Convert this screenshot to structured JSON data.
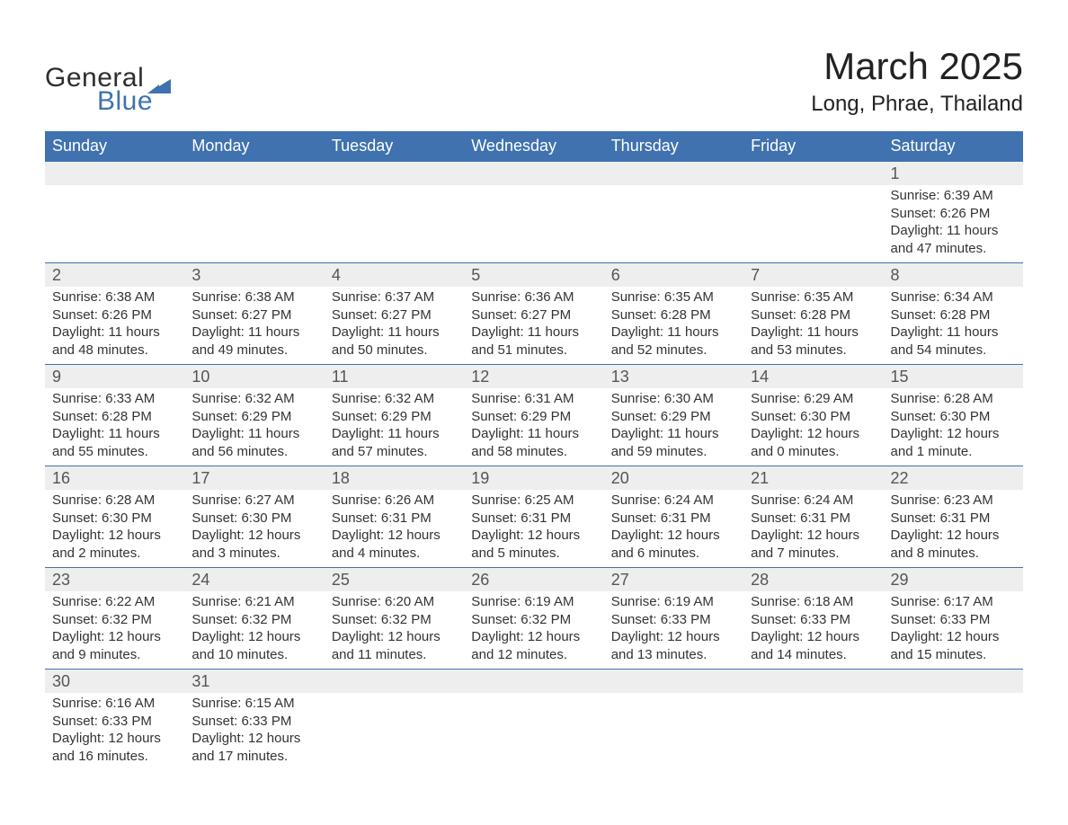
{
  "brand": {
    "word1": "General",
    "word2": "Blue",
    "word1_color": "#2e2e2e",
    "word2_color": "#3f72af",
    "logo_shape_color": "#3f72af"
  },
  "title": {
    "month": "March 2025",
    "location": "Long, Phrae, Thailand"
  },
  "styling": {
    "header_bg": "#3f72af",
    "header_text": "#ffffff",
    "daynum_bg": "#eeeeee",
    "row_border": "#3f72af",
    "body_text": "#333333",
    "daynum_text": "#555555",
    "page_bg": "#ffffff",
    "font_family": "Arial"
  },
  "day_headers": [
    "Sunday",
    "Monday",
    "Tuesday",
    "Wednesday",
    "Thursday",
    "Friday",
    "Saturday"
  ],
  "weeks": [
    {
      "nums": [
        "",
        "",
        "",
        "",
        "",
        "",
        "1"
      ],
      "details": [
        null,
        null,
        null,
        null,
        null,
        null,
        {
          "sunrise": "Sunrise: 6:39 AM",
          "sunset": "Sunset: 6:26 PM",
          "day1": "Daylight: 11 hours",
          "day2": "and 47 minutes."
        }
      ]
    },
    {
      "nums": [
        "2",
        "3",
        "4",
        "5",
        "6",
        "7",
        "8"
      ],
      "details": [
        {
          "sunrise": "Sunrise: 6:38 AM",
          "sunset": "Sunset: 6:26 PM",
          "day1": "Daylight: 11 hours",
          "day2": "and 48 minutes."
        },
        {
          "sunrise": "Sunrise: 6:38 AM",
          "sunset": "Sunset: 6:27 PM",
          "day1": "Daylight: 11 hours",
          "day2": "and 49 minutes."
        },
        {
          "sunrise": "Sunrise: 6:37 AM",
          "sunset": "Sunset: 6:27 PM",
          "day1": "Daylight: 11 hours",
          "day2": "and 50 minutes."
        },
        {
          "sunrise": "Sunrise: 6:36 AM",
          "sunset": "Sunset: 6:27 PM",
          "day1": "Daylight: 11 hours",
          "day2": "and 51 minutes."
        },
        {
          "sunrise": "Sunrise: 6:35 AM",
          "sunset": "Sunset: 6:28 PM",
          "day1": "Daylight: 11 hours",
          "day2": "and 52 minutes."
        },
        {
          "sunrise": "Sunrise: 6:35 AM",
          "sunset": "Sunset: 6:28 PM",
          "day1": "Daylight: 11 hours",
          "day2": "and 53 minutes."
        },
        {
          "sunrise": "Sunrise: 6:34 AM",
          "sunset": "Sunset: 6:28 PM",
          "day1": "Daylight: 11 hours",
          "day2": "and 54 minutes."
        }
      ]
    },
    {
      "nums": [
        "9",
        "10",
        "11",
        "12",
        "13",
        "14",
        "15"
      ],
      "details": [
        {
          "sunrise": "Sunrise: 6:33 AM",
          "sunset": "Sunset: 6:28 PM",
          "day1": "Daylight: 11 hours",
          "day2": "and 55 minutes."
        },
        {
          "sunrise": "Sunrise: 6:32 AM",
          "sunset": "Sunset: 6:29 PM",
          "day1": "Daylight: 11 hours",
          "day2": "and 56 minutes."
        },
        {
          "sunrise": "Sunrise: 6:32 AM",
          "sunset": "Sunset: 6:29 PM",
          "day1": "Daylight: 11 hours",
          "day2": "and 57 minutes."
        },
        {
          "sunrise": "Sunrise: 6:31 AM",
          "sunset": "Sunset: 6:29 PM",
          "day1": "Daylight: 11 hours",
          "day2": "and 58 minutes."
        },
        {
          "sunrise": "Sunrise: 6:30 AM",
          "sunset": "Sunset: 6:29 PM",
          "day1": "Daylight: 11 hours",
          "day2": "and 59 minutes."
        },
        {
          "sunrise": "Sunrise: 6:29 AM",
          "sunset": "Sunset: 6:30 PM",
          "day1": "Daylight: 12 hours",
          "day2": "and 0 minutes."
        },
        {
          "sunrise": "Sunrise: 6:28 AM",
          "sunset": "Sunset: 6:30 PM",
          "day1": "Daylight: 12 hours",
          "day2": "and 1 minute."
        }
      ]
    },
    {
      "nums": [
        "16",
        "17",
        "18",
        "19",
        "20",
        "21",
        "22"
      ],
      "details": [
        {
          "sunrise": "Sunrise: 6:28 AM",
          "sunset": "Sunset: 6:30 PM",
          "day1": "Daylight: 12 hours",
          "day2": "and 2 minutes."
        },
        {
          "sunrise": "Sunrise: 6:27 AM",
          "sunset": "Sunset: 6:30 PM",
          "day1": "Daylight: 12 hours",
          "day2": "and 3 minutes."
        },
        {
          "sunrise": "Sunrise: 6:26 AM",
          "sunset": "Sunset: 6:31 PM",
          "day1": "Daylight: 12 hours",
          "day2": "and 4 minutes."
        },
        {
          "sunrise": "Sunrise: 6:25 AM",
          "sunset": "Sunset: 6:31 PM",
          "day1": "Daylight: 12 hours",
          "day2": "and 5 minutes."
        },
        {
          "sunrise": "Sunrise: 6:24 AM",
          "sunset": "Sunset: 6:31 PM",
          "day1": "Daylight: 12 hours",
          "day2": "and 6 minutes."
        },
        {
          "sunrise": "Sunrise: 6:24 AM",
          "sunset": "Sunset: 6:31 PM",
          "day1": "Daylight: 12 hours",
          "day2": "and 7 minutes."
        },
        {
          "sunrise": "Sunrise: 6:23 AM",
          "sunset": "Sunset: 6:31 PM",
          "day1": "Daylight: 12 hours",
          "day2": "and 8 minutes."
        }
      ]
    },
    {
      "nums": [
        "23",
        "24",
        "25",
        "26",
        "27",
        "28",
        "29"
      ],
      "details": [
        {
          "sunrise": "Sunrise: 6:22 AM",
          "sunset": "Sunset: 6:32 PM",
          "day1": "Daylight: 12 hours",
          "day2": "and 9 minutes."
        },
        {
          "sunrise": "Sunrise: 6:21 AM",
          "sunset": "Sunset: 6:32 PM",
          "day1": "Daylight: 12 hours",
          "day2": "and 10 minutes."
        },
        {
          "sunrise": "Sunrise: 6:20 AM",
          "sunset": "Sunset: 6:32 PM",
          "day1": "Daylight: 12 hours",
          "day2": "and 11 minutes."
        },
        {
          "sunrise": "Sunrise: 6:19 AM",
          "sunset": "Sunset: 6:32 PM",
          "day1": "Daylight: 12 hours",
          "day2": "and 12 minutes."
        },
        {
          "sunrise": "Sunrise: 6:19 AM",
          "sunset": "Sunset: 6:33 PM",
          "day1": "Daylight: 12 hours",
          "day2": "and 13 minutes."
        },
        {
          "sunrise": "Sunrise: 6:18 AM",
          "sunset": "Sunset: 6:33 PM",
          "day1": "Daylight: 12 hours",
          "day2": "and 14 minutes."
        },
        {
          "sunrise": "Sunrise: 6:17 AM",
          "sunset": "Sunset: 6:33 PM",
          "day1": "Daylight: 12 hours",
          "day2": "and 15 minutes."
        }
      ]
    },
    {
      "nums": [
        "30",
        "31",
        "",
        "",
        "",
        "",
        ""
      ],
      "details": [
        {
          "sunrise": "Sunrise: 6:16 AM",
          "sunset": "Sunset: 6:33 PM",
          "day1": "Daylight: 12 hours",
          "day2": "and 16 minutes."
        },
        {
          "sunrise": "Sunrise: 6:15 AM",
          "sunset": "Sunset: 6:33 PM",
          "day1": "Daylight: 12 hours",
          "day2": "and 17 minutes."
        },
        null,
        null,
        null,
        null,
        null
      ]
    }
  ]
}
